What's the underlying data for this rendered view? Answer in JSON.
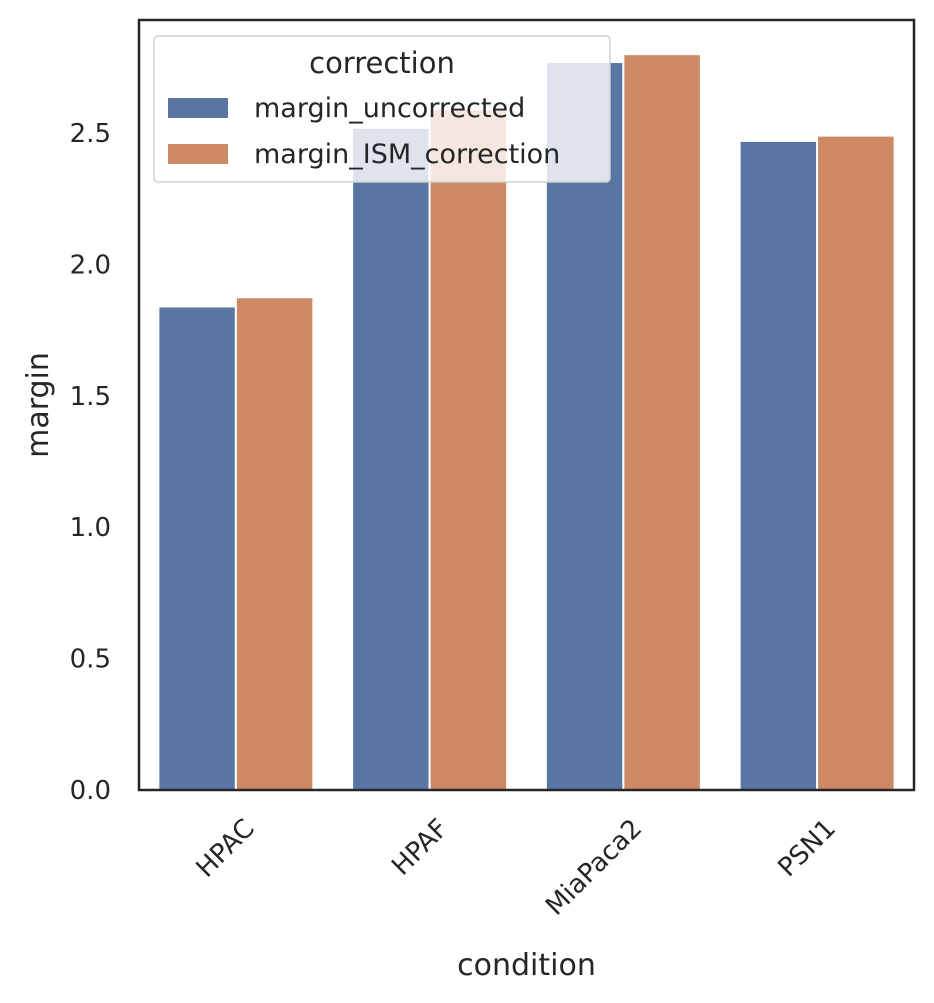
{
  "chart_data": {
    "type": "bar",
    "title": "",
    "xlabel": "condition",
    "ylabel": "margin",
    "categories": [
      "HPAC",
      "HPAF",
      "MiaPaca2",
      "PSN1"
    ],
    "series": [
      {
        "name": "margin_uncorrected",
        "values": [
          1.84,
          2.52,
          2.77,
          2.47
        ],
        "color": "#5975a4"
      },
      {
        "name": "margin_ISM_correction",
        "values": [
          1.875,
          2.59,
          2.8,
          2.49
        ],
        "color": "#cc8963"
      }
    ],
    "ylim": [
      0,
      2.93
    ],
    "yticks": [
      "0.0",
      "0.5",
      "1.0",
      "1.5",
      "2.0",
      "2.5"
    ],
    "ytick_values": [
      0,
      0.5,
      1.0,
      1.5,
      2.0,
      2.5
    ],
    "legend": {
      "title": "correction",
      "placement": "top-left"
    },
    "grid": false
  }
}
